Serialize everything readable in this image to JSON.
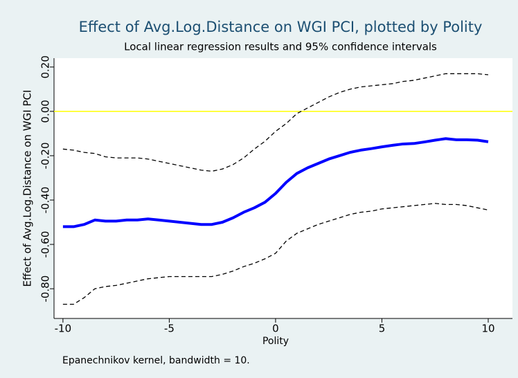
{
  "chart_data": {
    "type": "line",
    "title": "Effect of Avg.Log.Distance on WGI PCI, plotted by Polity",
    "subtitle": "Local linear regression results and 95% confidence intervals",
    "x_label": "Polity",
    "y_label": "Effect of Avg.Log.Distance on WGI PCI",
    "note": "Epanechnikov kernel, bandwidth = 10.",
    "x": [
      -10,
      -9.5,
      -9,
      -8.5,
      -8,
      -7.5,
      -7,
      -6.5,
      -6,
      -5.5,
      -5,
      -4.5,
      -4,
      -3.5,
      -3,
      -2.5,
      -2,
      -1.5,
      -1,
      -0.5,
      0,
      0.5,
      1,
      1.5,
      2,
      2.5,
      3,
      3.5,
      4,
      4.5,
      5,
      5.5,
      6,
      6.5,
      7,
      7.5,
      8,
      8.5,
      9,
      9.5,
      10
    ],
    "series": [
      {
        "color": "#0000ff",
        "line_style": "solid",
        "width": 4,
        "values": [
          -0.52,
          -0.52,
          -0.51,
          -0.49,
          -0.495,
          -0.495,
          -0.49,
          -0.49,
          -0.485,
          -0.49,
          -0.495,
          -0.5,
          -0.505,
          -0.51,
          -0.51,
          -0.5,
          -0.48,
          -0.455,
          -0.435,
          -0.41,
          -0.37,
          -0.32,
          -0.28,
          -0.255,
          -0.235,
          -0.215,
          -0.2,
          -0.185,
          -0.175,
          -0.168,
          -0.16,
          -0.153,
          -0.147,
          -0.145,
          -0.138,
          -0.13,
          -0.123,
          -0.128,
          -0.128,
          -0.13,
          -0.137
        ]
      },
      {
        "color": "#000000",
        "line_style": "dashed",
        "width": 1.3,
        "values": [
          -0.17,
          -0.175,
          -0.185,
          -0.19,
          -0.205,
          -0.21,
          -0.21,
          -0.21,
          -0.215,
          -0.225,
          -0.235,
          -0.245,
          -0.255,
          -0.265,
          -0.27,
          -0.26,
          -0.24,
          -0.21,
          -0.17,
          -0.135,
          -0.09,
          -0.055,
          -0.01,
          0.015,
          0.04,
          0.065,
          0.085,
          0.1,
          0.11,
          0.115,
          0.12,
          0.125,
          0.135,
          0.14,
          0.15,
          0.16,
          0.17,
          0.17,
          0.17,
          0.17,
          0.165
        ]
      },
      {
        "color": "#000000",
        "line_style": "dashed",
        "width": 1.3,
        "values": [
          -0.87,
          -0.87,
          -0.84,
          -0.8,
          -0.79,
          -0.785,
          -0.775,
          -0.765,
          -0.755,
          -0.75,
          -0.745,
          -0.745,
          -0.745,
          -0.745,
          -0.745,
          -0.735,
          -0.72,
          -0.7,
          -0.685,
          -0.665,
          -0.64,
          -0.585,
          -0.55,
          -0.53,
          -0.51,
          -0.495,
          -0.48,
          -0.465,
          -0.455,
          -0.45,
          -0.44,
          -0.435,
          -0.43,
          -0.425,
          -0.42,
          -0.415,
          -0.42,
          -0.42,
          -0.425,
          -0.435,
          -0.445
        ]
      }
    ],
    "reference_line": {
      "y": 0,
      "color": "#ffff00"
    },
    "xlim": [
      -10.42,
      11.14
    ],
    "ylim": [
      -0.934,
      0.24
    ],
    "xticks": [
      -10,
      -5,
      0,
      5,
      10
    ],
    "yticks": [
      {
        "value": -0.8,
        "label": "-0.80"
      },
      {
        "value": -0.6,
        "label": "-0.60"
      },
      {
        "value": -0.4,
        "label": "-0.40"
      },
      {
        "value": -0.2,
        "label": "-0.20"
      },
      {
        "value": 0,
        "label": "0.00"
      },
      {
        "value": 0.2,
        "label": "0.20"
      }
    ],
    "grid": false
  }
}
